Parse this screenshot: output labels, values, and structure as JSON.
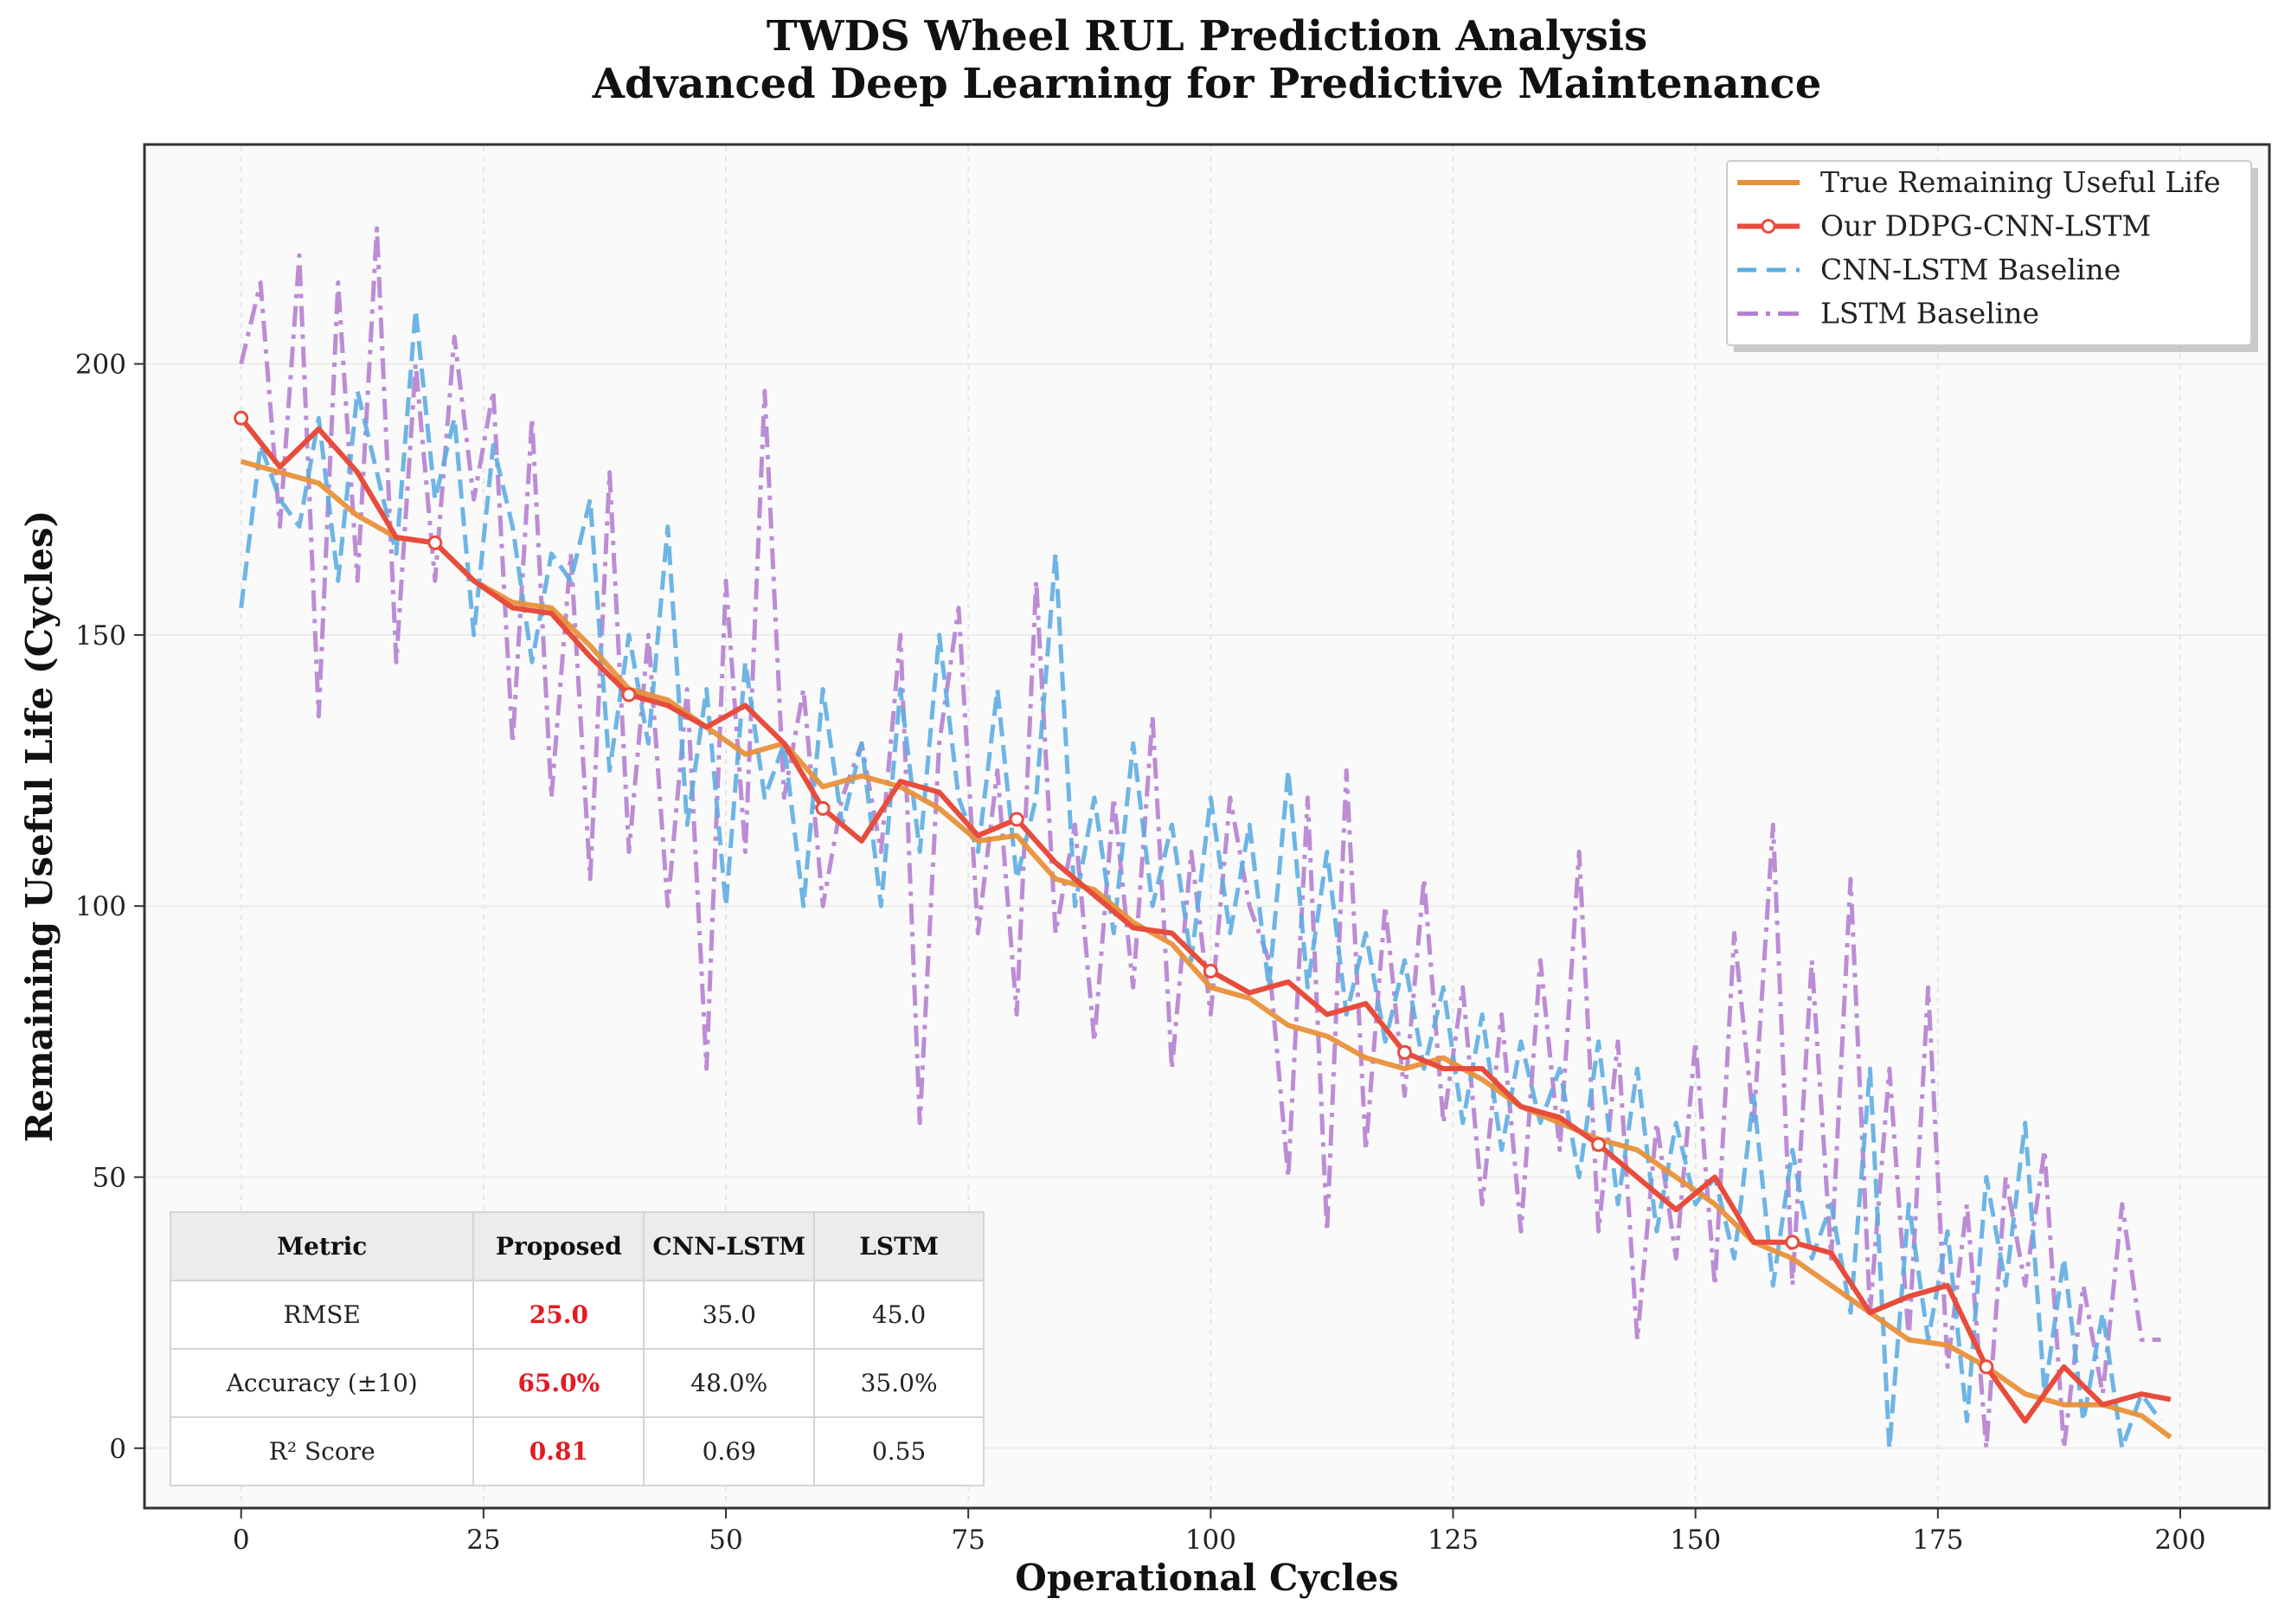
{
  "chart_data": {
    "type": "line",
    "title": "TWDS Wheel RUL Prediction Analysis",
    "subtitle": "Advanced Deep Learning for Predictive Maintenance",
    "xlabel": "Operational Cycles",
    "ylabel": "Remaining Useful Life (Cycles)",
    "xlim": [
      -10,
      209
    ],
    "ylim": [
      -11,
      240
    ],
    "xticks": [
      0,
      25,
      50,
      75,
      100,
      125,
      150,
      175,
      200
    ],
    "yticks": [
      0,
      50,
      100,
      150,
      200
    ],
    "grid": true,
    "legend_position": "top-right",
    "series": [
      {
        "name": "True Remaining Useful Life",
        "color": "#E8913A",
        "style": "solid",
        "step": 4,
        "values": [
          182,
          180,
          178,
          172,
          168,
          167,
          160,
          156,
          155,
          148,
          140,
          138,
          133,
          128,
          130,
          122,
          124,
          122,
          118,
          112,
          113,
          105,
          103,
          97,
          93,
          85,
          83,
          78,
          76,
          72,
          70,
          72,
          68,
          63,
          60,
          57,
          55,
          50,
          45,
          38,
          35,
          30,
          25,
          20,
          19,
          15,
          10,
          8,
          8,
          6,
          2
        ]
      },
      {
        "name": "Our DDPG-CNN-LSTM",
        "color": "#E74C3C",
        "style": "solid-marker",
        "step": 4,
        "marker_every": 20,
        "values": [
          190,
          181,
          188,
          180,
          168,
          167,
          160,
          155,
          154,
          146,
          139,
          137,
          133,
          137,
          130,
          118,
          112,
          123,
          121,
          113,
          116,
          108,
          102,
          96,
          95,
          88,
          84,
          86,
          80,
          82,
          73,
          70,
          70,
          63,
          61,
          56,
          50,
          44,
          50,
          38,
          38,
          36,
          25,
          28,
          30,
          15,
          5,
          15,
          8,
          10,
          9
        ]
      },
      {
        "name": "CNN-LSTM Baseline",
        "color": "#5DADE2",
        "style": "dashed",
        "step": 2,
        "values": [
          155,
          185,
          175,
          170,
          190,
          160,
          195,
          180,
          165,
          210,
          175,
          190,
          150,
          185,
          170,
          145,
          165,
          160,
          175,
          125,
          150,
          130,
          170,
          115,
          140,
          100,
          145,
          120,
          130,
          100,
          140,
          115,
          130,
          100,
          140,
          110,
          150,
          120,
          110,
          140,
          105,
          120,
          165,
          100,
          120,
          95,
          130,
          100,
          115,
          90,
          120,
          95,
          115,
          85,
          125,
          85,
          110,
          80,
          95,
          75,
          90,
          70,
          85,
          60,
          80,
          55,
          75,
          60,
          70,
          50,
          75,
          45,
          70,
          40,
          60,
          45,
          50,
          35,
          65,
          30,
          55,
          35,
          45,
          25,
          70,
          0,
          45,
          20,
          40,
          5,
          50,
          30,
          60,
          10,
          35,
          5,
          25,
          0,
          10,
          5
        ]
      },
      {
        "name": "LSTM Baseline",
        "color": "#B57FD0",
        "style": "dashdot",
        "step": 2,
        "values": [
          200,
          215,
          170,
          220,
          135,
          215,
          160,
          225,
          145,
          200,
          160,
          205,
          175,
          195,
          130,
          190,
          120,
          165,
          105,
          180,
          110,
          150,
          100,
          140,
          70,
          160,
          110,
          195,
          120,
          140,
          100,
          120,
          130,
          110,
          150,
          60,
          130,
          155,
          95,
          125,
          80,
          160,
          95,
          115,
          75,
          120,
          85,
          135,
          70,
          110,
          80,
          120,
          100,
          90,
          50,
          120,
          40,
          125,
          55,
          100,
          65,
          105,
          60,
          85,
          45,
          80,
          40,
          90,
          55,
          110,
          40,
          75,
          20,
          60,
          35,
          75,
          30,
          95,
          60,
          115,
          30,
          90,
          35,
          105,
          25,
          70,
          20,
          85,
          15,
          45,
          0,
          50,
          30,
          55,
          0,
          30,
          10,
          45,
          20,
          20
        ]
      }
    ],
    "table": {
      "headers": [
        "Metric",
        "Proposed",
        "CNN-LSTM",
        "LSTM"
      ],
      "rows": [
        [
          "RMSE",
          "25.0",
          "35.0",
          "45.0"
        ],
        [
          "Accuracy (±10)",
          "65.0%",
          "48.0%",
          "35.0%"
        ],
        [
          "R² Score",
          "0.81",
          "0.69",
          "0.55"
        ]
      ],
      "highlight_color": "#E31B23"
    }
  }
}
